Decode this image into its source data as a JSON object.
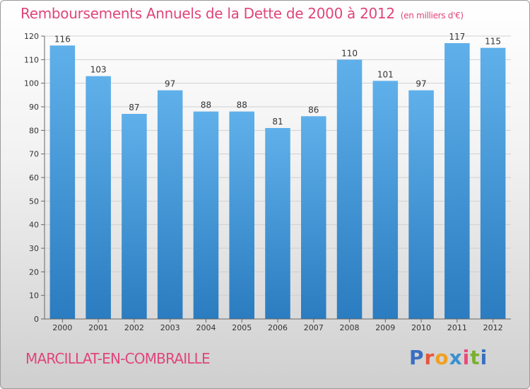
{
  "title": "Remboursements Annuels de la Dette de 2000 à 2012",
  "subtitle": "(en milliers d'€)",
  "commune": "MARCILLAT-EN-COMBRAILLE",
  "logo": {
    "text": "Proxiti",
    "letter_colors": [
      "#3a6fc0",
      "#e8553a",
      "#f0a020",
      "#3a8fd0",
      "#e84a7a",
      "#7ab030",
      "#3a6fc0"
    ]
  },
  "colors": {
    "title": "#e0457b",
    "bar_light": "#5fb0ea",
    "bar_dark": "#2b7cc0",
    "grid": "#d0d0d0",
    "axis": "#666666"
  },
  "chart_data": {
    "type": "bar",
    "title": "Remboursements Annuels de la Dette de 2000 à 2012",
    "subtitle": "(en milliers d'€)",
    "categories": [
      "2000",
      "2001",
      "2002",
      "2003",
      "2004",
      "2005",
      "2006",
      "2007",
      "2008",
      "2009",
      "2010",
      "2011",
      "2012"
    ],
    "values": [
      116,
      103,
      87,
      97,
      88,
      88,
      81,
      86,
      110,
      101,
      97,
      117,
      115
    ],
    "ylim": [
      0,
      120
    ],
    "yticks": [
      0,
      10,
      20,
      30,
      40,
      50,
      60,
      70,
      80,
      90,
      100,
      110,
      120
    ],
    "grid": true,
    "data_labels": true
  }
}
